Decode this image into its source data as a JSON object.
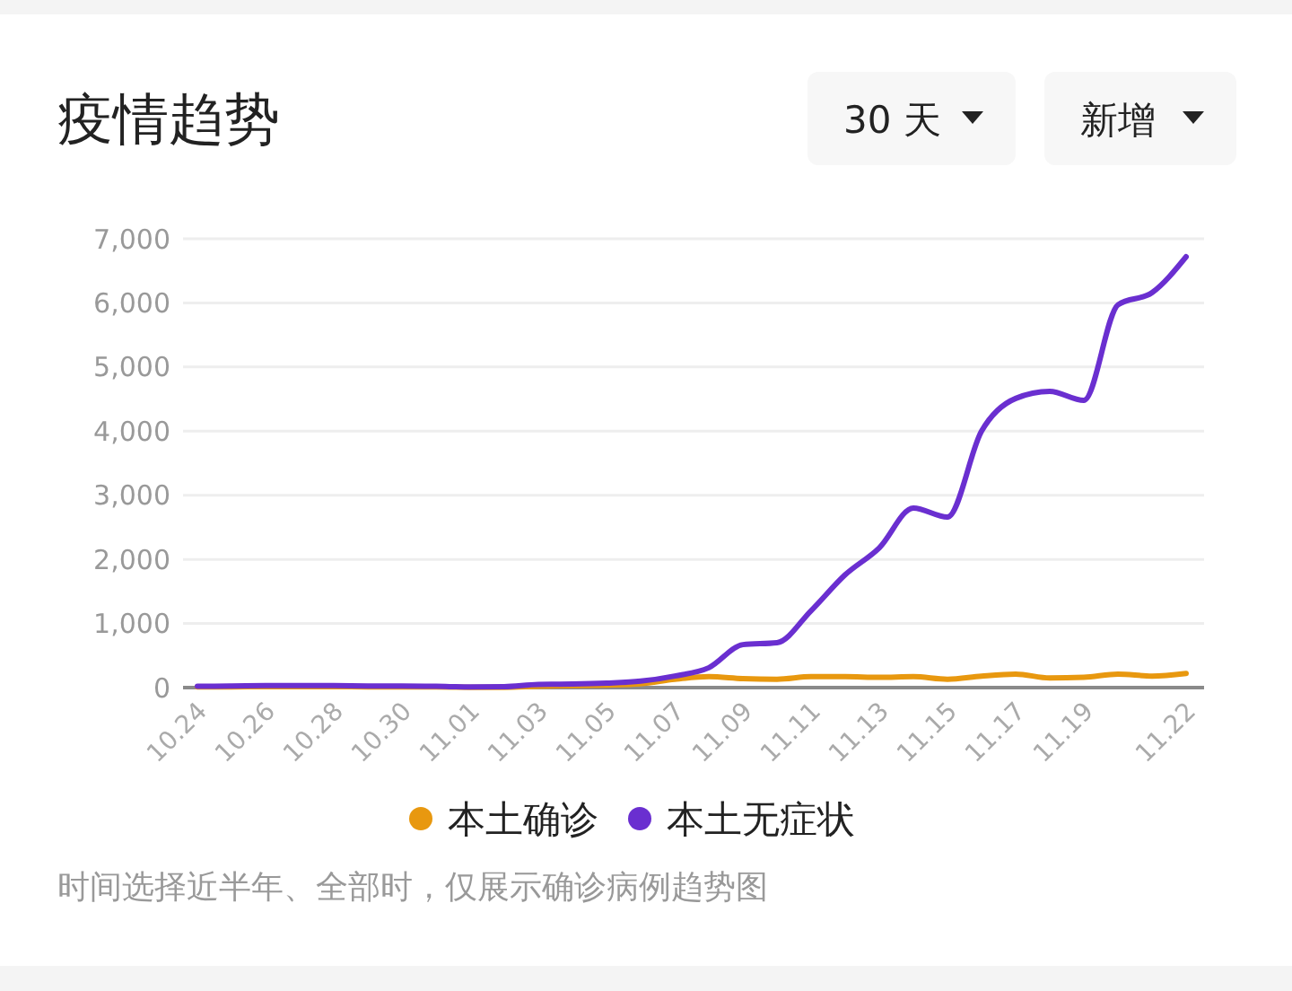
{
  "chart_data": {
    "type": "line",
    "title": "疫情趋势",
    "annotations": [
      "30 天",
      "新增",
      "时间选择近半年、全部时，仅展示确诊病例趋势图"
    ],
    "categories": [
      "10.24",
      null,
      "10.26",
      null,
      "10.28",
      null,
      "10.30",
      null,
      "11.01",
      null,
      "11.03",
      null,
      "11.05",
      null,
      "11.07",
      null,
      "11.09",
      null,
      "11.11",
      null,
      "11.13",
      null,
      "11.15",
      null,
      "11.17",
      null,
      "11.19",
      null,
      null,
      "11.22"
    ],
    "series": [
      {
        "name": "本土确诊",
        "color": "#e8980f",
        "values": [
          10,
          10,
          15,
          15,
          15,
          10,
          10,
          10,
          5,
          5,
          20,
          30,
          40,
          60,
          130,
          170,
          140,
          130,
          170,
          170,
          160,
          170,
          130,
          180,
          210,
          150,
          160,
          210,
          180,
          220
        ]
      },
      {
        "name": "本土无症状",
        "color": "#6a2fd0",
        "values": [
          20,
          25,
          30,
          30,
          30,
          25,
          25,
          20,
          10,
          15,
          50,
          55,
          70,
          100,
          180,
          310,
          670,
          700,
          1200,
          1760,
          2180,
          2800,
          2660,
          4000,
          4510,
          4620,
          4480,
          5970,
          6160,
          6720
        ]
      }
    ],
    "ylim": [
      0,
      7000
    ],
    "yticks": [
      {
        "value": 0,
        "label": "0"
      },
      {
        "value": 1000,
        "label": "1,000"
      },
      {
        "value": 2000,
        "label": "2,000"
      },
      {
        "value": 3000,
        "label": "3,000"
      },
      {
        "value": 4000,
        "label": "4,000"
      },
      {
        "value": 5000,
        "label": "5,000"
      },
      {
        "value": 6000,
        "label": "6,000"
      },
      {
        "value": 7000,
        "label": "7,000"
      }
    ],
    "grid": "y",
    "legend": "bottom",
    "marker": "none",
    "line_style": "solid"
  }
}
